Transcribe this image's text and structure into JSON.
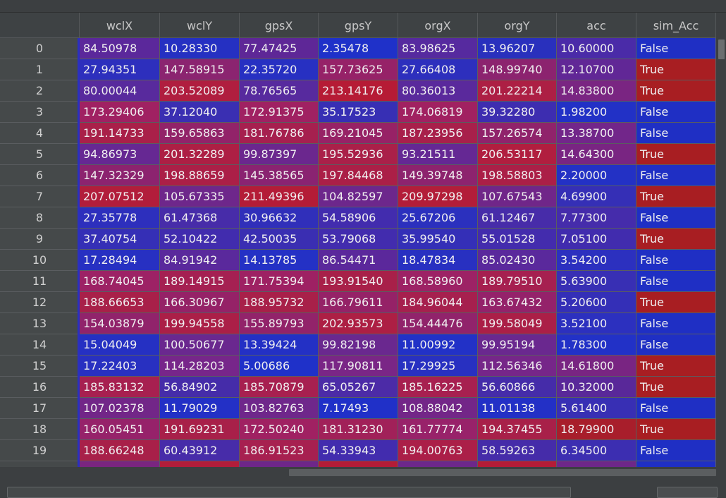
{
  "table": {
    "columns": [
      "wclX",
      "wclY",
      "gpsX",
      "gpsY",
      "orgX",
      "orgY",
      "acc",
      "sim_Acc"
    ],
    "rows": [
      {
        "index": "0",
        "cells": [
          "84.50978",
          "10.28330",
          "77.47425",
          "2.35478",
          "83.98625",
          "13.96207",
          "10.60000",
          "False"
        ],
        "colors": [
          "#5b289b",
          "#2530c2",
          "#5e2797",
          "#1f31c9",
          "#562a9f",
          "#2930bd",
          "#4a2ba8",
          "#1f2fc4"
        ]
      },
      {
        "index": "1",
        "cells": [
          "27.94351",
          "147.58915",
          "22.35720",
          "157.73625",
          "27.66408",
          "148.99740",
          "12.10700",
          "True"
        ],
        "colors": [
          "#2d2fbd",
          "#8b2470",
          "#2730c2",
          "#962268",
          "#2d2fbd",
          "#8c236f",
          "#612796",
          "#a81e22"
        ]
      },
      {
        "index": "2",
        "cells": [
          "80.00044",
          "203.52089",
          "78.76565",
          "213.14176",
          "80.36013",
          "201.22214",
          "14.83800",
          "True"
        ],
        "colors": [
          "#582a9d",
          "#b01e3f",
          "#572a9e",
          "#b61b35",
          "#5a299c",
          "#ad1f44",
          "#7a2582",
          "#a81e22"
        ]
      },
      {
        "index": "3",
        "cells": [
          "173.29406",
          "37.12040",
          "172.91375",
          "35.17523",
          "174.06819",
          "39.32280",
          "1.98200",
          "False"
        ],
        "colors": [
          "#a02162",
          "#3a2fb2",
          "#a02162",
          "#372fb4",
          "#a12161",
          "#3d2db0",
          "#2231c6",
          "#1f2fc4"
        ]
      },
      {
        "index": "4",
        "cells": [
          "191.14733",
          "159.65863",
          "181.76786",
          "169.21045",
          "187.23956",
          "157.26574",
          "13.38700",
          "False"
        ],
        "colors": [
          "#a92049",
          "#922369",
          "#a6204f",
          "#972266",
          "#a8204b",
          "#90236b",
          "#72268a",
          "#1f2fc4"
        ]
      },
      {
        "index": "5",
        "cells": [
          "94.86973",
          "201.32289",
          "99.87397",
          "195.52936",
          "93.21511",
          "206.53117",
          "14.64300",
          "True"
        ],
        "colors": [
          "#662893",
          "#ad1f44",
          "#6b278e",
          "#aa2049",
          "#652894",
          "#b11e3f",
          "#792582",
          "#a81e22"
        ]
      },
      {
        "index": "6",
        "cells": [
          "147.32329",
          "198.88659",
          "145.38565",
          "197.84468",
          "149.39748",
          "198.58803",
          "2.20000",
          "False"
        ],
        "colors": [
          "#8c236f",
          "#ab1f47",
          "#8a2371",
          "#ab1f47",
          "#8d236e",
          "#ab1f47",
          "#2331c5",
          "#1f2fc4"
        ]
      },
      {
        "index": "7",
        "cells": [
          "207.07512",
          "105.67335",
          "211.49396",
          "104.82597",
          "209.97298",
          "107.67543",
          "4.69900",
          "True"
        ],
        "colors": [
          "#b21d3b",
          "#6e278b",
          "#b41c37",
          "#6d278c",
          "#b31d39",
          "#702689",
          "#352fb6",
          "#a81e22"
        ]
      },
      {
        "index": "8",
        "cells": [
          "27.35778",
          "61.47368",
          "30.96632",
          "54.58906",
          "25.67206",
          "61.12467",
          "7.77300",
          "False"
        ],
        "colors": [
          "#2d2fbd",
          "#472ca9",
          "#302fba",
          "#422cae",
          "#2b30be",
          "#472ca9",
          "#452cab",
          "#1f2fc4"
        ]
      },
      {
        "index": "9",
        "cells": [
          "37.40754",
          "52.10422",
          "42.50035",
          "53.79068",
          "35.99540",
          "55.01528",
          "7.05100",
          "True"
        ],
        "colors": [
          "#352fb6",
          "#412cae",
          "#3a2eb2",
          "#422cae",
          "#342fb7",
          "#432cad",
          "#412cae",
          "#a81e22"
        ]
      },
      {
        "index": "10",
        "cells": [
          "17.28494",
          "84.91942",
          "14.13785",
          "86.54471",
          "18.47834",
          "85.02430",
          "3.54200",
          "False"
        ],
        "colors": [
          "#2730c2",
          "#5a299c",
          "#2431c5",
          "#5b289b",
          "#2830c1",
          "#5a299c",
          "#2c30bf",
          "#1f2fc4"
        ]
      },
      {
        "index": "11",
        "cells": [
          "168.74045",
          "189.14915",
          "171.75394",
          "193.91540",
          "168.58960",
          "189.79510",
          "5.63900",
          "False"
        ],
        "colors": [
          "#9d2265",
          "#a52052",
          "#9e2163",
          "#a82049",
          "#9d2265",
          "#a62050",
          "#382fb4",
          "#1f2fc4"
        ]
      },
      {
        "index": "12",
        "cells": [
          "188.66653",
          "166.30967",
          "188.95732",
          "166.79611",
          "184.96044",
          "163.67432",
          "5.20600",
          "True"
        ],
        "colors": [
          "#a82049",
          "#952267",
          "#a82049",
          "#952267",
          "#a6204e",
          "#94226a",
          "#342fb7",
          "#a81e22"
        ]
      },
      {
        "index": "13",
        "cells": [
          "154.03879",
          "199.94558",
          "155.89793",
          "202.93573",
          "154.44476",
          "199.58049",
          "3.52100",
          "False"
        ],
        "colors": [
          "#91236b",
          "#ab1f47",
          "#92236a",
          "#ad1f44",
          "#91236b",
          "#ab1f47",
          "#2c30bf",
          "#1f2fc4"
        ]
      },
      {
        "index": "14",
        "cells": [
          "15.04049",
          "100.50677",
          "13.39424",
          "99.82198",
          "11.00992",
          "99.95194",
          "1.78300",
          "False"
        ],
        "colors": [
          "#2530c3",
          "#6a288f",
          "#2330c5",
          "#6a288f",
          "#2231c7",
          "#6a288f",
          "#2231c7",
          "#1f2fc4"
        ]
      },
      {
        "index": "15",
        "cells": [
          "17.22403",
          "114.28203",
          "5.00686",
          "117.90811",
          "17.29925",
          "112.56346",
          "14.61800",
          "True"
        ],
        "colors": [
          "#2830c1",
          "#77268a",
          "#1f31c9",
          "#7a2686",
          "#2830c1",
          "#762689",
          "#792582",
          "#a81e22"
        ]
      },
      {
        "index": "16",
        "cells": [
          "185.83132",
          "56.84902",
          "185.70879",
          "65.05267",
          "185.16225",
          "56.60866",
          "10.32000",
          "True"
        ],
        "colors": [
          "#a72050",
          "#452ca9",
          "#a72050",
          "#4c2ba7",
          "#a72050",
          "#452ca9",
          "#592899",
          "#a81e22"
        ]
      },
      {
        "index": "17",
        "cells": [
          "107.02378",
          "11.79029",
          "103.82763",
          "7.17493",
          "108.88042",
          "11.01138",
          "5.61400",
          "False"
        ],
        "colors": [
          "#722688",
          "#2330c6",
          "#6f278b",
          "#2030c8",
          "#732688",
          "#2330c6",
          "#382fb4",
          "#1f2fc4"
        ]
      },
      {
        "index": "18",
        "cells": [
          "160.05451",
          "191.69231",
          "172.50240",
          "181.31230",
          "161.77774",
          "194.37455",
          "18.79900",
          "True"
        ],
        "colors": [
          "#96226a",
          "#a82049",
          "#a02162",
          "#a12159",
          "#98226a",
          "#a82049",
          "#a81e2b",
          "#a81e22"
        ]
      },
      {
        "index": "19",
        "cells": [
          "188.66248",
          "60.43912",
          "186.91523",
          "54.33943",
          "194.00763",
          "58.59263",
          "6.34500",
          "False"
        ],
        "colors": [
          "#a82049",
          "#472ca9",
          "#a72050",
          "#422cae",
          "#ab1f48",
          "#452ca9",
          "#3c2eb1",
          "#1f2fc4"
        ]
      },
      {
        "index": "",
        "cells": [
          "",
          "",
          "",
          "",
          "",
          "",
          "",
          ""
        ],
        "colors": [
          "#7a2580",
          "#b21d3a",
          "#6e2689",
          "#b41c37",
          "#6d278b",
          "#b41c37",
          "#6e2789",
          "#1f2fc4"
        ]
      }
    ]
  }
}
